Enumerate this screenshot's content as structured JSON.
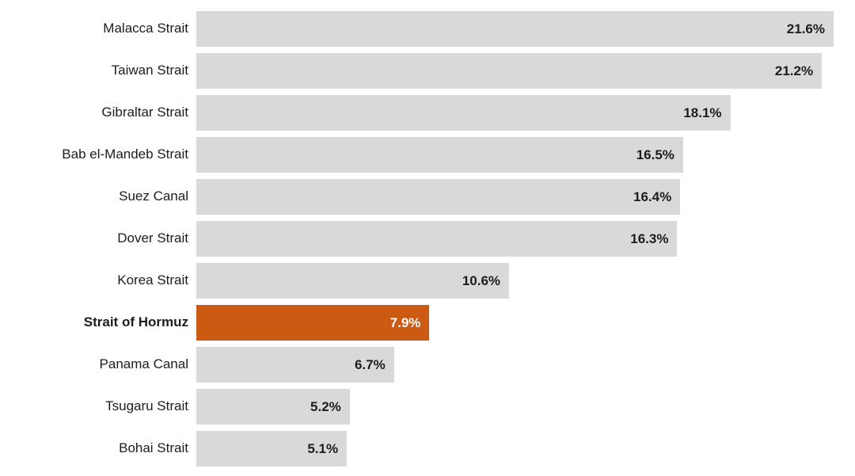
{
  "chart_data": {
    "type": "bar",
    "orientation": "horizontal",
    "title": "",
    "xlabel": "",
    "ylabel": "",
    "xlim": [
      0,
      21.6
    ],
    "grid": false,
    "legend": "none",
    "categories": [
      "Malacca Strait",
      "Taiwan Strait",
      "Gibraltar Strait",
      "Bab el-Mandeb Strait",
      "Suez Canal",
      "Dover Strait",
      "Korea Strait",
      "Strait of Hormuz",
      "Panama Canal",
      "Tsugaru Strait",
      "Bohai Strait"
    ],
    "values": [
      21.6,
      21.2,
      18.1,
      16.5,
      16.4,
      16.3,
      10.6,
      7.9,
      6.7,
      5.2,
      5.1
    ],
    "value_labels": [
      "21.6%",
      "21.2%",
      "18.1%",
      "16.5%",
      "16.4%",
      "16.3%",
      "10.6%",
      "7.9%",
      "6.7%",
      "5.2%",
      "5.1%"
    ],
    "value_suffix": "%",
    "highlight_index": 7,
    "highlight_category": "Strait of Hormuz",
    "colors": {
      "bar": "#d9d9d9",
      "highlight_bar": "#cd5a13",
      "label_text": "#1d1d1d",
      "value_text": "#1d1d1d",
      "highlight_value_text": "#ffffff",
      "background": "#ffffff"
    }
  }
}
